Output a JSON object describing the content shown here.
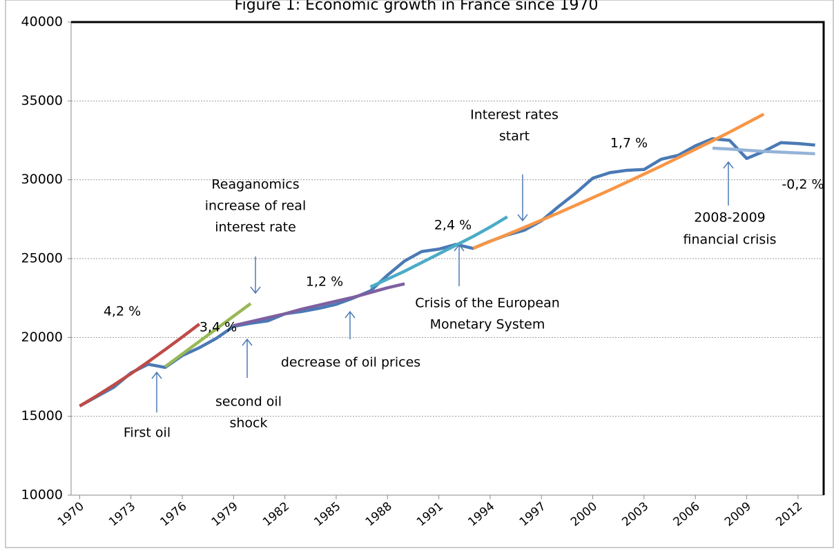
{
  "chart_data": {
    "type": "line",
    "title": "Figure 1: Economic growth in France since 1970",
    "x": [
      1970,
      1971,
      1972,
      1973,
      1974,
      1975,
      1976,
      1977,
      1978,
      1979,
      1980,
      1981,
      1982,
      1983,
      1984,
      1985,
      1986,
      1987,
      1988,
      1989,
      1990,
      1991,
      1992,
      1993,
      1994,
      1995,
      1996,
      1997,
      1998,
      1999,
      2000,
      2001,
      2002,
      2003,
      2004,
      2005,
      2006,
      2007,
      2008,
      2009,
      2010,
      2011,
      2012,
      2013
    ],
    "xlim": [
      1969.5,
      2013.5
    ],
    "xticks": [
      1970,
      1973,
      1976,
      1979,
      1982,
      1985,
      1988,
      1991,
      1994,
      1997,
      2000,
      2003,
      2006,
      2009,
      2012
    ],
    "ylim": [
      10000,
      40000
    ],
    "yticks": [
      10000,
      15000,
      20000,
      25000,
      30000,
      35000,
      40000
    ],
    "grid": true,
    "series": [
      {
        "color": "#4a7ab5",
        "values": [
          15650,
          16250,
          16850,
          17750,
          18300,
          18100,
          18850,
          19350,
          19950,
          20700,
          20900,
          21050,
          21500,
          21650,
          21850,
          22100,
          22500,
          22950,
          23950,
          24850,
          25450,
          25600,
          25900,
          25650,
          26100,
          26500,
          26800,
          27400,
          28300,
          29150,
          30100,
          30450,
          30600,
          30650,
          31300,
          31550,
          32150,
          32600,
          32500,
          31350,
          31800,
          32350,
          32300,
          32200
        ]
      },
      {
        "color": "#be4b48",
        "values": [
          15650,
          16300,
          16990,
          17700,
          18450,
          19230,
          20030,
          20850,
          null,
          null,
          null,
          null,
          null,
          null,
          null,
          null,
          null,
          null,
          null,
          null,
          null,
          null,
          null,
          null,
          null,
          null,
          null,
          null,
          null,
          null,
          null,
          null,
          null,
          null,
          null,
          null,
          null,
          null,
          null,
          null,
          null,
          null,
          null,
          null
        ]
      },
      {
        "color": "#98b954",
        "values": [
          null,
          null,
          null,
          null,
          null,
          18150,
          18950,
          19750,
          20550,
          21350,
          22150,
          null,
          null,
          null,
          null,
          null,
          null,
          null,
          null,
          null,
          null,
          null,
          null,
          null,
          null,
          null,
          null,
          null,
          null,
          null,
          null,
          null,
          null,
          null,
          null,
          null,
          null,
          null,
          null,
          null,
          null,
          null,
          null,
          null
        ]
      },
      {
        "color": "#7d60a0",
        "values": [
          null,
          null,
          null,
          null,
          null,
          null,
          null,
          null,
          null,
          20750,
          21000,
          21250,
          21500,
          21800,
          22050,
          22300,
          22550,
          22850,
          23150,
          23400,
          null,
          null,
          null,
          null,
          null,
          null,
          null,
          null,
          null,
          null,
          null,
          null,
          null,
          null,
          null,
          null,
          null,
          null,
          null,
          null,
          null,
          null,
          null,
          null
        ]
      },
      {
        "color": "#4bacc6",
        "values": [
          null,
          null,
          null,
          null,
          null,
          null,
          null,
          null,
          null,
          null,
          null,
          null,
          null,
          null,
          null,
          null,
          null,
          23200,
          23700,
          24200,
          24750,
          25300,
          25850,
          26400,
          27000,
          27650,
          null,
          null,
          null,
          null,
          null,
          null,
          null,
          null,
          null,
          null,
          null,
          null,
          null,
          null,
          null,
          null,
          null,
          null
        ]
      },
      {
        "color": "#f79646",
        "values": [
          null,
          null,
          null,
          null,
          null,
          null,
          null,
          null,
          null,
          null,
          null,
          null,
          null,
          null,
          null,
          null,
          null,
          null,
          null,
          null,
          null,
          null,
          null,
          25650,
          26090,
          26530,
          26980,
          27440,
          27900,
          28380,
          28860,
          29350,
          29850,
          30360,
          30870,
          31400,
          31930,
          32470,
          33020,
          33590,
          34160,
          null,
          null,
          null
        ]
      },
      {
        "color": "#95b3d7",
        "values": [
          null,
          null,
          null,
          null,
          null,
          null,
          null,
          null,
          null,
          null,
          null,
          null,
          null,
          null,
          null,
          null,
          null,
          null,
          null,
          null,
          null,
          null,
          null,
          null,
          null,
          null,
          null,
          null,
          null,
          null,
          null,
          null,
          null,
          null,
          null,
          null,
          null,
          32000,
          31950,
          31870,
          31800,
          31750,
          31700,
          31650
        ]
      }
    ],
    "annotations": [
      "4,2 %",
      "First oil",
      "second oil",
      "shock",
      "3,4 %",
      "Reaganomics",
      "increase of real",
      "interest rate",
      "1,2 %",
      "decrease of oil prices",
      "Crisis of the European",
      "Monetary System",
      "2,4 %",
      "Interest rates",
      "start",
      "1,7 %",
      "-0,2 %",
      "2008-2009",
      "financial crisis"
    ]
  }
}
